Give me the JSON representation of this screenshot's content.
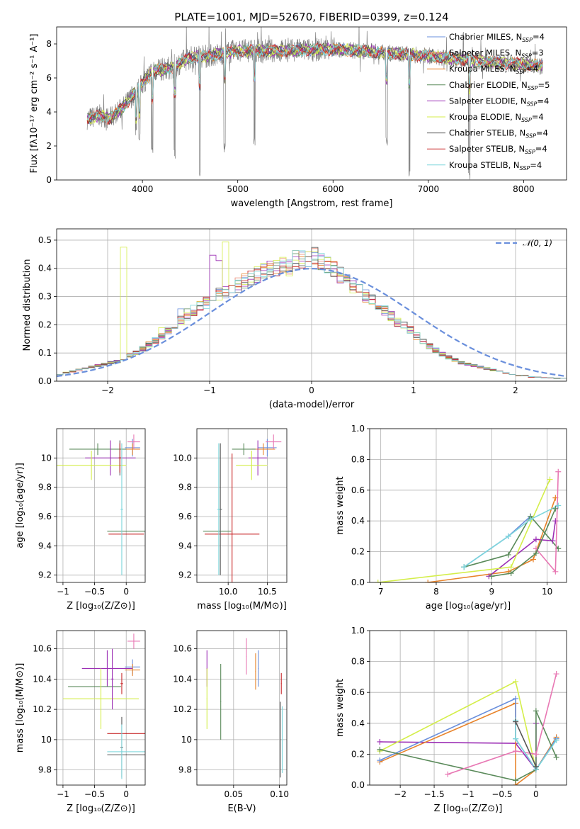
{
  "figure_title": "PLATE=1001, MJD=52670, FIBERID=0399, z=0.124",
  "colors": {
    "grid": "#b0b0b0",
    "spectrum_obs": "#808080",
    "normal": "#6a8fdc"
  },
  "chart_data": [
    {
      "id": "spectrum",
      "type": "line",
      "title": "PLATE=1001, MJD=52670, FIBERID=0399, z=0.124",
      "xlabel": "wavelength [Angstrom, rest frame]",
      "ylabel": "Flux [fλ10⁻¹⁷ erg cm⁻² s⁻¹ A⁻¹]",
      "xlim": [
        3100,
        8450
      ],
      "ylim": [
        0,
        9
      ],
      "xticks": [
        4000,
        5000,
        6000,
        7000,
        8000
      ],
      "yticks": [
        0,
        2,
        4,
        6,
        8
      ],
      "grid": false,
      "legend_position": "top-right",
      "observed_anchors": [
        [
          3420,
          3.6
        ],
        [
          3550,
          3.8
        ],
        [
          3650,
          3.6
        ],
        [
          3800,
          4.3
        ],
        [
          3950,
          5.3
        ],
        [
          4100,
          6.4
        ],
        [
          4300,
          6.6
        ],
        [
          4500,
          7.2
        ],
        [
          4700,
          7.3
        ],
        [
          5000,
          7.6
        ],
        [
          5500,
          7.6
        ],
        [
          6000,
          7.7
        ],
        [
          6500,
          7.5
        ],
        [
          7000,
          7.3
        ],
        [
          7500,
          7.0
        ],
        [
          8000,
          6.8
        ],
        [
          8200,
          6.7
        ]
      ],
      "dips": [
        [
          3934,
          2.5
        ],
        [
          3968,
          2.3
        ],
        [
          4102,
          1.5
        ],
        [
          4340,
          1.2
        ],
        [
          4600,
          0.0
        ],
        [
          4861,
          1.6
        ],
        [
          5175,
          1.9
        ],
        [
          6563,
          2.0
        ],
        [
          6800,
          0.0
        ],
        [
          7430,
          0.0
        ]
      ],
      "series": [
        {
          "name": "Chabrier MILES, N$_{SSP}$=4",
          "label_main": "Chabrier MILES, N",
          "label_sub": "SSP",
          "label_tail": "=4",
          "color": "#6a8fdc"
        },
        {
          "name": "Salpeter MILES, N$_{SSP}$=3",
          "label_main": "Salpeter MILES, N",
          "label_sub": "SSP",
          "label_tail": "=3",
          "color": "#e8836e"
        },
        {
          "name": "Kroupa MILES, N$_{SSP}$=4",
          "label_main": "Kroupa MILES, N",
          "label_sub": "SSP",
          "label_tail": "=4",
          "color": "#e8832a"
        },
        {
          "name": "Chabrier ELODIE, N$_{SSP}$=5",
          "label_main": "Chabrier ELODIE, N",
          "label_sub": "SSP",
          "label_tail": "=5",
          "color": "#5a8a5a"
        },
        {
          "name": "Salpeter ELODIE, N$_{SSP}$=4",
          "label_main": "Salpeter ELODIE, N",
          "label_sub": "SSP",
          "label_tail": "=4",
          "color": "#9c2fb5"
        },
        {
          "name": "Kroupa ELODIE, N$_{SSP}$=4",
          "label_main": "Kroupa ELODIE, N",
          "label_sub": "SSP",
          "label_tail": "=4",
          "color": "#d4ee4a"
        },
        {
          "name": "Chabrier STELIB, N$_{SSP}$=4",
          "label_main": "Chabrier STELIB, N",
          "label_sub": "SSP",
          "label_tail": "=4",
          "color": "#555555"
        },
        {
          "name": "Salpeter STELIB, N$_{SSP}$=4",
          "label_main": "Salpeter STELIB, N",
          "label_sub": "SSP",
          "label_tail": "=4",
          "color": "#c8282a"
        },
        {
          "name": "Kroupa STELIB, N$_{SSP}$=4",
          "label_main": "Kroupa STELIB, N",
          "label_sub": "SSP",
          "label_tail": "=4",
          "color": "#7dd6dc"
        }
      ]
    },
    {
      "id": "residuals",
      "type": "histogram",
      "xlabel": "(data-model)/error",
      "ylabel": "Normed distribution",
      "xlim": [
        -2.5,
        2.5
      ],
      "ylim": [
        0,
        0.54
      ],
      "xticks": [
        -2,
        -1,
        0,
        1,
        2
      ],
      "yticks": [
        0.0,
        0.1,
        0.2,
        0.3,
        0.4,
        0.5
      ],
      "grid": true,
      "legend_position": "top-right",
      "legend_label": "𝒩(0, 1)",
      "bin_width": 0.1,
      "bin_start": -2.5,
      "base_values": [
        0.025,
        0.03,
        0.035,
        0.04,
        0.045,
        0.05,
        0.055,
        0.06,
        0.065,
        0.07,
        0.08,
        0.09,
        0.1,
        0.115,
        0.13,
        0.145,
        0.16,
        0.18,
        0.2,
        0.215,
        0.235,
        0.25,
        0.27,
        0.28,
        0.295,
        0.31,
        0.32,
        0.33,
        0.34,
        0.355,
        0.37,
        0.38,
        0.39,
        0.395,
        0.4,
        0.41,
        0.4,
        0.43,
        0.43,
        0.44,
        0.44,
        0.42,
        0.41,
        0.4,
        0.375,
        0.36,
        0.34,
        0.33,
        0.3,
        0.29,
        0.27,
        0.25,
        0.23,
        0.21,
        0.195,
        0.18,
        0.16,
        0.14,
        0.125,
        0.11,
        0.095,
        0.085,
        0.075,
        0.065,
        0.06,
        0.055,
        0.05,
        0.045,
        0.04,
        0.035,
        0.03,
        0.025,
        0.02,
        0.02,
        0.015,
        0.015,
        0.012,
        0.012,
        0.01,
        0.01
      ],
      "highlights": [
        [
          26,
          0.52,
          5
        ],
        [
          25,
          0.45,
          4
        ],
        [
          24,
          0.47,
          4
        ],
        [
          20,
          0.27,
          3
        ],
        [
          19,
          0.27,
          0
        ],
        [
          16,
          0.2,
          5
        ],
        [
          10,
          0.5,
          5
        ]
      ]
    },
    {
      "id": "age_vs_Z",
      "type": "errorbar",
      "xlabel": "Z [log₁₀(Z/Z⊙)]",
      "ylabel": "age  [log₁₀(age/yr)]",
      "xlim": [
        -1.1,
        0.3
      ],
      "ylim": [
        9.15,
        10.2
      ],
      "xticks": [
        -1.0,
        -0.5,
        0.0
      ],
      "yticks": [
        9.2,
        9.4,
        9.6,
        9.8,
        10.0
      ],
      "grid": true,
      "points": [
        {
          "color": "#6a8fdc",
          "x": 0.1,
          "y": 10.07,
          "xerr": 0.12,
          "yerr": 0.06
        },
        {
          "color": "#e8832a",
          "x": 0.1,
          "y": 10.06,
          "xerr": 0.12,
          "yerr": 0.04
        },
        {
          "color": "#5a8a5a",
          "x": -0.45,
          "y": 10.06,
          "xerr": 0.45,
          "yerr": 0.04
        },
        {
          "color": "#9c2fb5",
          "x": -0.25,
          "y": 10.0,
          "xerr": 0.4,
          "yerr": 0.12
        },
        {
          "color": "#d4ee4a",
          "x": -0.55,
          "y": 9.95,
          "xerr": 0.55,
          "yerr": 0.1
        },
        {
          "color": "#555555",
          "x": -0.1,
          "y": 10.0,
          "xerr": 0.02,
          "yerr": 0.12
        },
        {
          "color": "#c8282a",
          "x": -0.1,
          "y": 10.0,
          "xerr": 0.02,
          "yerr": 0.1
        },
        {
          "color": "#e878b4",
          "x": 0.12,
          "y": 10.11,
          "xerr": 0.1,
          "yerr": 0.05
        },
        {
          "color": "#5a8a5a",
          "x": 0.0,
          "y": 9.5,
          "xerr": 0.3,
          "yerr": 0.0
        },
        {
          "color": "#c8282a",
          "x": 0.0,
          "y": 9.48,
          "xerr": 0.28,
          "yerr": 0.0
        },
        {
          "color": "#7dd6dc",
          "x": -0.07,
          "y": 9.65,
          "xerr": 0.02,
          "yerr": 0.45
        }
      ]
    },
    {
      "id": "age_vs_mass",
      "type": "errorbar",
      "xlabel": "mass [log₁₀(M/M⊙)]",
      "ylabel": "",
      "xlim": [
        9.6,
        10.75
      ],
      "ylim": [
        9.15,
        10.2
      ],
      "xticks": [
        10.0,
        10.5
      ],
      "yticks": [
        9.2,
        9.4,
        9.6,
        9.8,
        10.0
      ],
      "grid": true,
      "points": [
        {
          "color": "#6a8fdc",
          "x": 10.5,
          "y": 10.07,
          "xerr": 0.12,
          "yerr": 0.06
        },
        {
          "color": "#e8832a",
          "x": 10.45,
          "y": 10.06,
          "xerr": 0.15,
          "yerr": 0.04
        },
        {
          "color": "#5a8a5a",
          "x": 10.2,
          "y": 10.06,
          "xerr": 0.15,
          "yerr": 0.04
        },
        {
          "color": "#9c2fb5",
          "x": 10.38,
          "y": 10.0,
          "xerr": 0.12,
          "yerr": 0.12
        },
        {
          "color": "#d4ee4a",
          "x": 10.3,
          "y": 9.95,
          "xerr": 0.2,
          "yerr": 0.1
        },
        {
          "color": "#e878b4",
          "x": 10.58,
          "y": 10.11,
          "xerr": 0.1,
          "yerr": 0.05
        },
        {
          "color": "#5a8a5a",
          "x": 9.86,
          "y": 9.5,
          "xerr": 0.18,
          "yerr": 0.0
        },
        {
          "color": "#c8282a",
          "x": 10.05,
          "y": 9.48,
          "xerr": 0.35,
          "yerr": 0.55
        },
        {
          "color": "#555555",
          "x": 9.9,
          "y": 9.65,
          "xerr": 0.02,
          "yerr": 0.45
        },
        {
          "color": "#7dd6dc",
          "x": 9.88,
          "y": 9.65,
          "xerr": 0.02,
          "yerr": 0.45
        }
      ]
    },
    {
      "id": "weight_vs_age",
      "type": "line",
      "xlabel": "age  [log₁₀(age/yr)]",
      "ylabel": "mass weight",
      "xlim": [
        6.8,
        10.35
      ],
      "ylim": [
        0.0,
        1.0
      ],
      "xticks": [
        7,
        8,
        9,
        10
      ],
      "yticks": [
        0.0,
        0.2,
        0.4,
        0.6,
        0.8,
        1.0
      ],
      "grid": true,
      "series": [
        {
          "color": "#6a8fdc",
          "x": [
            8.5,
            9.3,
            9.7
          ],
          "y": [
            0.1,
            0.3,
            0.43
          ]
        },
        {
          "color": "#e8832a",
          "x": [
            7.85,
            9.3,
            9.75,
            10.15
          ],
          "y": [
            0.0,
            0.07,
            0.15,
            0.55
          ]
        },
        {
          "color": "#5a8a5a",
          "x": [
            8.5,
            9.3,
            9.7,
            10.2
          ],
          "y": [
            0.1,
            0.18,
            0.43,
            0.22
          ]
        },
        {
          "color": "#9c2fb5",
          "x": [
            8.95,
            9.8,
            10.1,
            10.15
          ],
          "y": [
            0.04,
            0.28,
            0.27,
            0.4
          ]
        },
        {
          "color": "#d4ee4a",
          "x": [
            6.95,
            9.35,
            10.05
          ],
          "y": [
            0.0,
            0.1,
            0.67
          ]
        },
        {
          "color": "#e878b4",
          "x": [
            9.8,
            10.15,
            10.2
          ],
          "y": [
            0.22,
            0.07,
            0.72
          ]
        },
        {
          "color": "#7dd6dc",
          "x": [
            8.5,
            9.3,
            9.7,
            10.2
          ],
          "y": [
            0.1,
            0.3,
            0.41,
            0.5
          ]
        },
        {
          "color": "#5a8a5a",
          "x": [
            9.0,
            9.35,
            9.8,
            10.15
          ],
          "y": [
            0.04,
            0.06,
            0.19,
            0.48
          ]
        }
      ]
    },
    {
      "id": "mass_vs_Z",
      "type": "errorbar",
      "xlabel": "Z [log₁₀(Z/Z⊙)]",
      "ylabel": "mass [log₁₀(M/M⊙)]",
      "xlim": [
        -1.1,
        0.3
      ],
      "ylim": [
        9.7,
        10.72
      ],
      "xticks": [
        -1.0,
        -0.5,
        0.0
      ],
      "yticks": [
        9.8,
        10.0,
        10.2,
        10.4,
        10.6
      ],
      "grid": true,
      "points": [
        {
          "color": "#6a8fdc",
          "x": 0.1,
          "y": 10.48,
          "xerr": 0.12,
          "yerr": 0.05
        },
        {
          "color": "#e8832a",
          "x": 0.1,
          "y": 10.46,
          "xerr": 0.12,
          "yerr": 0.04
        },
        {
          "color": "#9c2fb5",
          "x": -0.3,
          "y": 10.47,
          "xerr": 0.4,
          "yerr": 0.12
        },
        {
          "color": "#5a8a5a",
          "x": -0.5,
          "y": 10.35,
          "xerr": 0.42,
          "yerr": 0.0
        },
        {
          "color": "#d4ee4a",
          "x": -0.4,
          "y": 10.27,
          "xerr": 0.6,
          "yerr": 0.2
        },
        {
          "color": "#e878b4",
          "x": 0.12,
          "y": 10.65,
          "xerr": 0.1,
          "yerr": 0.05
        },
        {
          "color": "#c8282a",
          "x": 0.0,
          "y": 10.04,
          "xerr": 0.3,
          "yerr": 0.0
        },
        {
          "color": "#555555",
          "x": 0.0,
          "y": 9.9,
          "xerr": 0.3,
          "yerr": 0.0
        },
        {
          "color": "#7dd6dc",
          "x": 0.0,
          "y": 9.92,
          "xerr": 0.3,
          "yerr": 0.0
        },
        {
          "color": "#9c2fb5",
          "x": -0.22,
          "y": 10.4,
          "xerr": 0.02,
          "yerr": 0.2
        },
        {
          "color": "#c8282a",
          "x": -0.07,
          "y": 10.37,
          "xerr": 0.02,
          "yerr": 0.07
        },
        {
          "color": "#555555",
          "x": -0.07,
          "y": 9.95,
          "xerr": 0.02,
          "yerr": 0.2
        },
        {
          "color": "#7dd6dc",
          "x": -0.07,
          "y": 9.92,
          "xerr": 0.02,
          "yerr": 0.18
        }
      ]
    },
    {
      "id": "mass_vs_EBV",
      "type": "errorbar",
      "xlabel": "E(B-V)",
      "ylabel": "",
      "xlim": [
        0.01,
        0.108
      ],
      "ylim": [
        9.7,
        10.72
      ],
      "xticks": [
        0.05,
        0.1
      ],
      "yticks": [
        9.8,
        10.0,
        10.2,
        10.4,
        10.6
      ],
      "grid": true,
      "points": [
        {
          "color": "#9c2fb5",
          "x": 0.021,
          "y": 10.47,
          "xerr": 0,
          "yerr": 0.12
        },
        {
          "color": "#d4ee4a",
          "x": 0.021,
          "y": 10.27,
          "xerr": 0,
          "yerr": 0.2
        },
        {
          "color": "#5a8a5a",
          "x": 0.036,
          "y": 10.25,
          "xerr": 0,
          "yerr": 0.25
        },
        {
          "color": "#e878b4",
          "x": 0.064,
          "y": 10.55,
          "xerr": 0,
          "yerr": 0.12
        },
        {
          "color": "#e8832a",
          "x": 0.074,
          "y": 10.45,
          "xerr": 0,
          "yerr": 0.12
        },
        {
          "color": "#6a8fdc",
          "x": 0.077,
          "y": 10.47,
          "xerr": 0,
          "yerr": 0.12
        },
        {
          "color": "#c8282a",
          "x": 0.102,
          "y": 10.37,
          "xerr": 0,
          "yerr": 0.07
        },
        {
          "color": "#555555",
          "x": 0.101,
          "y": 10.0,
          "xerr": 0,
          "yerr": 0.25
        },
        {
          "color": "#7dd6dc",
          "x": 0.103,
          "y": 10.0,
          "xerr": 0,
          "yerr": 0.22
        }
      ]
    },
    {
      "id": "weight_vs_Z",
      "type": "line",
      "xlabel": "Z [log₁₀(Z/Z⊙)]",
      "ylabel": "mass weight",
      "xlim": [
        -2.45,
        0.45
      ],
      "ylim": [
        0.0,
        1.0
      ],
      "xticks": [
        -2.0,
        -1.5,
        -1.0,
        -0.5,
        0.0
      ],
      "yticks": [
        0.0,
        0.2,
        0.4,
        0.6,
        0.8,
        1.0
      ],
      "grid": true,
      "series": [
        {
          "color": "#9c2fb5",
          "x": [
            -2.3,
            -0.3,
            0.0,
            0.0
          ],
          "y": [
            0.28,
            0.27,
            0.1,
            0.4
          ]
        },
        {
          "color": "#d4ee4a",
          "x": [
            -2.3,
            -0.3,
            0.0,
            0.3
          ],
          "y": [
            0.22,
            0.67,
            0.1,
            0.3
          ]
        },
        {
          "color": "#e8832a",
          "x": [
            -2.3,
            -0.3,
            -0.3,
            0.0,
            0.3
          ],
          "y": [
            0.15,
            0.53,
            0.0,
            0.1,
            0.31
          ]
        },
        {
          "color": "#6a8fdc",
          "x": [
            -2.3,
            -0.3,
            -0.3,
            0.0,
            0.3
          ],
          "y": [
            0.16,
            0.56,
            0.3,
            0.1,
            0.3
          ]
        },
        {
          "color": "#5a8a5a",
          "x": [
            -2.3,
            -0.3,
            0.0,
            0.0,
            0.3
          ],
          "y": [
            0.23,
            0.03,
            0.1,
            0.48,
            0.18
          ]
        },
        {
          "color": "#e878b4",
          "x": [
            -1.3,
            -0.3,
            0.0,
            0.3
          ],
          "y": [
            0.07,
            0.22,
            0.2,
            0.72
          ]
        },
        {
          "color": "#7dd6dc",
          "x": [
            -0.3,
            -0.3,
            0.0,
            0.3
          ],
          "y": [
            0.42,
            0.3,
            0.1,
            0.29
          ]
        },
        {
          "color": "#555555",
          "x": [
            -0.3,
            0.0
          ],
          "y": [
            0.41,
            0.12
          ]
        }
      ]
    }
  ]
}
